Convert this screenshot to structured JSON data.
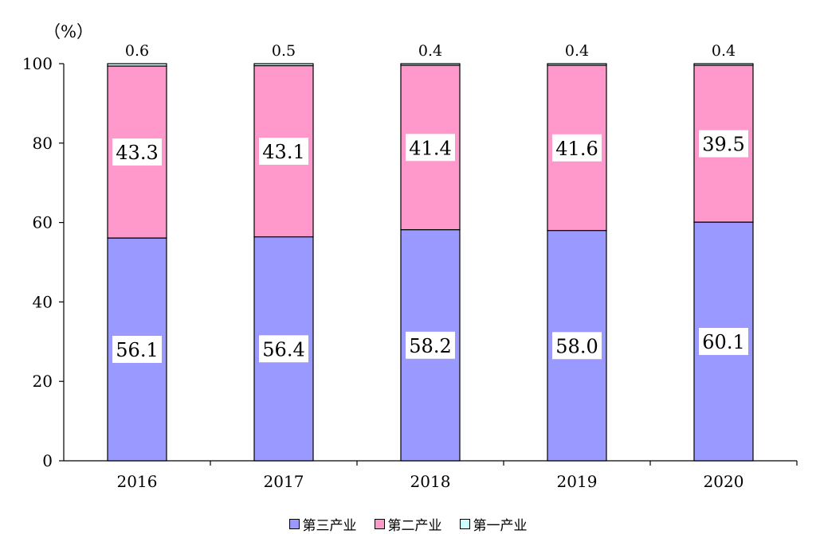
{
  "chart_data": {
    "type": "bar",
    "stacked": true,
    "unit_label": "（%）",
    "categories": [
      "2016",
      "2017",
      "2018",
      "2019",
      "2020"
    ],
    "series": [
      {
        "name": "第三产业",
        "color": "#9999ff",
        "values": [
          56.1,
          56.4,
          58.2,
          58.0,
          60.1
        ]
      },
      {
        "name": "第二产业",
        "color": "#ff99cc",
        "values": [
          43.3,
          43.1,
          41.4,
          41.6,
          39.5
        ]
      },
      {
        "name": "第一产业",
        "color": "#ccffff",
        "values": [
          0.6,
          0.5,
          0.4,
          0.4,
          0.4
        ]
      }
    ],
    "ylim": [
      0,
      100
    ],
    "yticks": [
      "0",
      "20",
      "40",
      "60",
      "80",
      "100"
    ],
    "grid": false,
    "legend_position": "bottom"
  }
}
